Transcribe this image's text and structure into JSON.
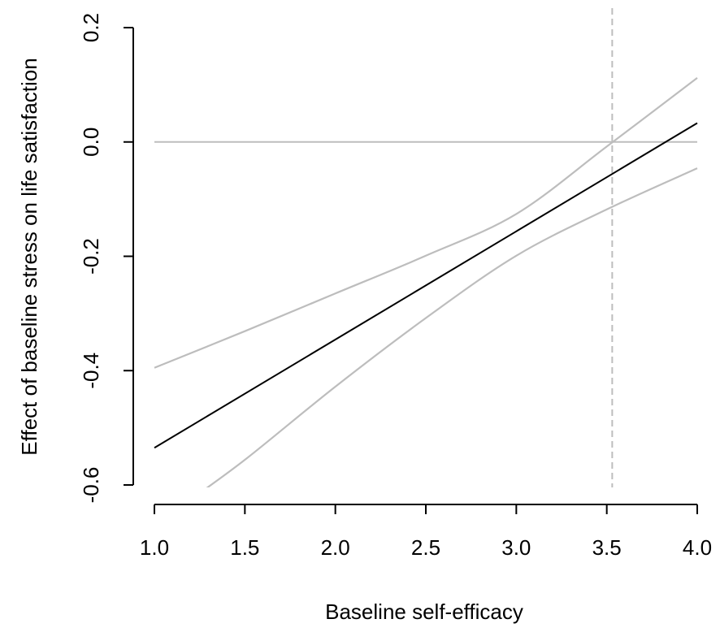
{
  "chart_data": {
    "type": "line",
    "xlabel": "Baseline self-efficacy",
    "ylabel": "Effect of baseline stress on life satisfaction",
    "xlim": [
      1.0,
      4.0
    ],
    "ylim": [
      -0.6,
      0.2
    ],
    "x_ticks": [
      "1.0",
      "1.5",
      "2.0",
      "2.5",
      "3.0",
      "3.5",
      "4.0"
    ],
    "y_ticks": [
      "-0.6",
      "-0.4",
      "-0.2",
      "0.0",
      "0.2"
    ],
    "grid": false,
    "reference_lines": [
      {
        "orientation": "horizontal",
        "value": 0.0,
        "color": "#bdbdbd",
        "style": "solid"
      },
      {
        "orientation": "vertical",
        "value": 3.53,
        "color": "#bdbdbd",
        "style": "dashed"
      }
    ],
    "series": [
      {
        "role": "estimate",
        "color": "#000000",
        "x": [
          1.0,
          4.0
        ],
        "y": [
          -0.535,
          0.033
        ]
      },
      {
        "role": "upper_bound",
        "color": "#bdbdbd",
        "x": [
          1.0,
          1.5,
          2.0,
          2.5,
          3.0,
          3.5,
          4.0
        ],
        "y": [
          -0.395,
          -0.331,
          -0.265,
          -0.199,
          -0.126,
          -0.008,
          0.112
        ]
      },
      {
        "role": "lower_bound",
        "color": "#bdbdbd",
        "x": [
          1.18,
          1.5,
          2.0,
          2.5,
          3.0,
          3.5,
          4.0
        ],
        "y": [
          -0.63,
          -0.556,
          -0.428,
          -0.308,
          -0.199,
          -0.118,
          -0.046
        ]
      }
    ]
  }
}
